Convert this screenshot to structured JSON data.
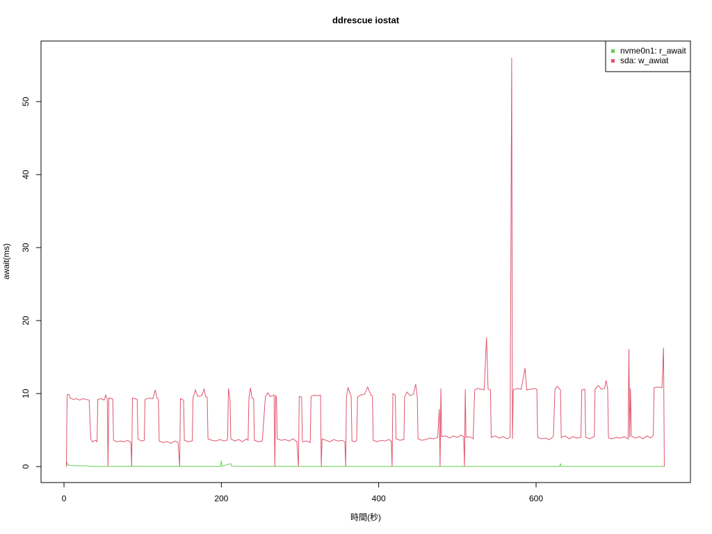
{
  "chart_data": {
    "type": "line",
    "title": "ddrescue iostat",
    "x_label": "時間(秒)",
    "y_label": "await(ms)",
    "xlim": [
      -29.2,
      796.2
    ],
    "ylim": [
      -2.19,
      58.3
    ],
    "xticks": [
      0,
      200,
      400,
      600
    ],
    "yticks": [
      0,
      10,
      20,
      30,
      40,
      50
    ],
    "legend": "top-right",
    "series": [
      {
        "name": "nvme0n1: r_await",
        "color": "#61D04F",
        "x": [
          3,
          4,
          5,
          10,
          20,
          30,
          33,
          60,
          90,
          120,
          199,
          200,
          201,
          212,
          213,
          300,
          400,
          500,
          630,
          631,
          632,
          700,
          763
        ],
        "values": [
          0.1,
          0.5,
          0.2,
          0.15,
          0.1,
          0.12,
          0.03,
          0.03,
          0.05,
          0.04,
          0.03,
          0.8,
          0.05,
          0.4,
          0.05,
          0.03,
          0.03,
          0.03,
          0.03,
          0.35,
          0.03,
          0.03,
          0.03
        ]
      },
      {
        "name": "sda: w_awiat",
        "color": "#DF536B",
        "x": [
          3,
          4,
          6,
          8,
          12,
          16,
          20,
          24,
          28,
          32,
          34,
          36,
          40,
          42,
          43,
          47,
          51,
          53,
          55,
          56,
          57,
          61,
          62,
          63,
          67,
          72,
          77,
          81,
          85,
          86,
          87,
          90,
          93,
          94,
          98,
          102,
          103,
          108,
          113,
          116,
          118,
          120,
          121,
          126,
          131,
          136,
          141,
          145,
          147,
          148,
          152,
          153,
          158,
          163,
          164,
          167,
          170,
          175,
          178,
          180,
          182,
          183,
          188,
          193,
          198,
          203,
          207,
          208,
          209,
          211,
          212,
          217,
          222,
          227,
          232,
          234,
          235,
          237,
          239,
          241,
          242,
          247,
          252,
          256,
          259,
          262,
          265,
          267,
          268,
          269,
          270,
          271,
          276,
          281,
          286,
          291,
          296,
          298,
          299,
          302,
          303,
          308,
          313,
          314,
          318,
          322,
          326,
          327,
          328,
          333,
          338,
          343,
          348,
          353,
          357,
          358,
          359,
          361,
          365,
          366,
          370,
          372,
          373,
          377,
          382,
          386,
          390,
          392,
          393,
          398,
          403,
          408,
          413,
          416,
          417,
          418,
          421,
          422,
          427,
          432,
          433,
          436,
          440,
          444,
          447,
          449,
          450,
          455,
          460,
          465,
          470,
          475,
          477,
          478,
          479,
          480,
          485,
          490,
          495,
          500,
          505,
          508,
          509,
          510,
          511,
          516,
          520,
          522,
          526,
          530,
          534,
          537,
          539,
          542,
          543,
          548,
          553,
          558,
          563,
          567,
          569,
          570,
          571,
          576,
          581,
          586,
          588,
          593,
          598,
          601,
          602,
          607,
          612,
          617,
          622,
          624,
          627,
          631,
          632,
          637,
          642,
          647,
          652,
          657,
          658,
          662,
          663,
          668,
          674,
          675,
          679,
          683,
          687,
          689,
          691,
          692,
          697,
          702,
          707,
          712,
          717,
          718,
          719,
          720,
          721,
          726,
          731,
          736,
          741,
          746,
          749,
          750,
          755,
          760,
          762,
          763
        ],
        "values": [
          0,
          9.8,
          9.9,
          9.4,
          9.2,
          9.3,
          9.1,
          9.3,
          9.2,
          9.1,
          3.8,
          3.4,
          3.6,
          3.4,
          9.2,
          9.3,
          9.1,
          9.8,
          9.2,
          0,
          9.4,
          9.3,
          9.2,
          3.6,
          3.4,
          3.5,
          3.4,
          3.6,
          3.3,
          0,
          9.4,
          9.3,
          9.2,
          3.8,
          3.5,
          3.6,
          9.2,
          9.4,
          9.3,
          10.5,
          9.4,
          9.2,
          3.5,
          3.3,
          3.4,
          3.2,
          3.5,
          3.3,
          0,
          9.3,
          9.1,
          3.6,
          3.4,
          3.5,
          9.4,
          10.5,
          9.6,
          9.7,
          10.6,
          9.6,
          9.5,
          3.8,
          3.6,
          3.5,
          3.7,
          3.5,
          3.6,
          4.0,
          10.7,
          9.2,
          3.8,
          3.5,
          3.7,
          3.4,
          3.8,
          3.6,
          9.3,
          10.8,
          9.4,
          9.3,
          3.6,
          3.4,
          3.5,
          9.6,
          10.1,
          9.6,
          9.7,
          9.8,
          0,
          9.7,
          9.5,
          3.8,
          3.6,
          3.7,
          3.5,
          3.8,
          3.4,
          0,
          9.6,
          9.5,
          3.4,
          3.5,
          3.3,
          9.6,
          9.8,
          9.7,
          9.8,
          0,
          3.8,
          3.6,
          3.4,
          3.7,
          3.5,
          3.6,
          3.4,
          0,
          9.5,
          10.8,
          9.6,
          3.5,
          3.4,
          3.6,
          9.5,
          9.8,
          9.9,
          10.9,
          9.8,
          9.7,
          3.6,
          3.4,
          3.6,
          3.5,
          3.7,
          3.5,
          0,
          10.0,
          9.8,
          3.8,
          3.6,
          3.7,
          9.6,
          10.2,
          9.7,
          9.9,
          11.3,
          9.6,
          3.8,
          3.6,
          3.7,
          3.9,
          3.8,
          4.0,
          7.9,
          0,
          10.7,
          4.1,
          4.2,
          3.9,
          4.2,
          4.0,
          4.3,
          4.1,
          0,
          10.6,
          4.0,
          4.1,
          3.8,
          10.5,
          10.7,
          10.6,
          10.5,
          17.7,
          10.6,
          10.5,
          4.0,
          4.2,
          3.9,
          4.1,
          3.8,
          4.0,
          56,
          3.8,
          10.5,
          10.7,
          10.6,
          13.5,
          10.5,
          10.6,
          10.7,
          10.6,
          4.0,
          3.8,
          3.9,
          3.7,
          4.1,
          10.6,
          11.0,
          10.5,
          4.0,
          4.2,
          3.8,
          4.1,
          3.9,
          4.0,
          10.5,
          10.6,
          4.0,
          3.8,
          4.1,
          10.6,
          11.1,
          10.6,
          10.7,
          11.8,
          10.6,
          3.9,
          3.8,
          4.0,
          3.9,
          4.1,
          3.8,
          16.1,
          4.0,
          10.7,
          4.2,
          3.9,
          4.1,
          3.8,
          4.2,
          3.9,
          4.3,
          10.8,
          10.9,
          10.8,
          16.3,
          0
        ]
      }
    ]
  }
}
